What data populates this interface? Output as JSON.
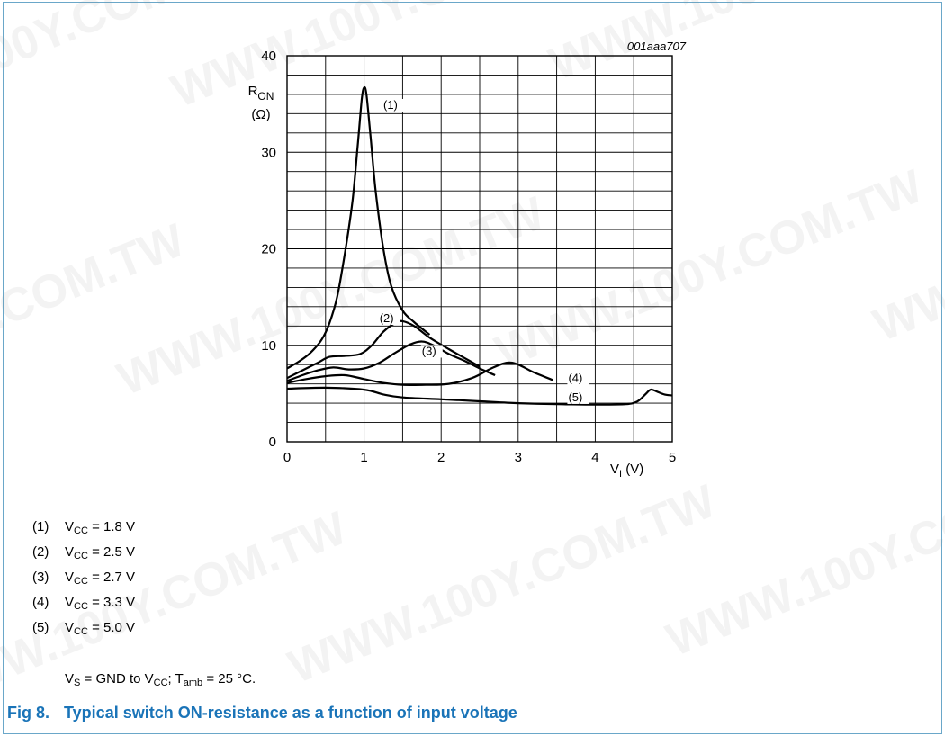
{
  "figure": {
    "number": "Fig 8.",
    "title": "Typical switch ON-resistance as a function of input voltage",
    "id": "001aaa707"
  },
  "watermark": "WWW.100Y.COM.TW",
  "colors": {
    "title": "#1a74b8",
    "frame": "#6aa7c9",
    "grid": "#000000",
    "curve": "#000000"
  },
  "conditions": {
    "parts": [
      "V",
      "S",
      " = GND to V",
      "CC",
      "; T",
      "amb",
      " = 25 °C."
    ]
  },
  "legend": [
    {
      "num": "(1)",
      "var": "V",
      "sub": "CC",
      "text": " = 1.8 V"
    },
    {
      "num": "(2)",
      "var": "V",
      "sub": "CC",
      "text": " = 2.5 V"
    },
    {
      "num": "(3)",
      "var": "V",
      "sub": "CC",
      "text": " = 2.7 V"
    },
    {
      "num": "(4)",
      "var": "V",
      "sub": "CC",
      "text": " = 3.3 V"
    },
    {
      "num": "(5)",
      "var": "V",
      "sub": "CC",
      "text": " = 5.0 V"
    }
  ],
  "chart_data": {
    "type": "line",
    "xlabel": {
      "var": "V",
      "sub": "I",
      "unit": " (V)"
    },
    "ylabel": {
      "var": "R",
      "sub": "ON",
      "unit": "(Ω)"
    },
    "xlim": [
      0,
      5
    ],
    "ylim": [
      0,
      40
    ],
    "x_ticks": [
      "0",
      "1",
      "2",
      "3",
      "4",
      "5"
    ],
    "y_ticks": [
      "0",
      "10",
      "20",
      "30",
      "40"
    ],
    "x_minor_step": 0.5,
    "y_minor_step": 2,
    "grid": true,
    "series": [
      {
        "name": "(1)",
        "label_at": [
          1.25,
          34.5
        ],
        "points": [
          [
            0,
            7.6
          ],
          [
            0.15,
            8.3
          ],
          [
            0.3,
            9.2
          ],
          [
            0.45,
            10.6
          ],
          [
            0.55,
            12.3
          ],
          [
            0.65,
            15
          ],
          [
            0.75,
            19.5
          ],
          [
            0.85,
            25
          ],
          [
            0.92,
            31
          ],
          [
            0.97,
            35.5
          ],
          [
            1.0,
            36.7
          ],
          [
            1.03,
            36
          ],
          [
            1.08,
            32
          ],
          [
            1.15,
            26
          ],
          [
            1.25,
            20
          ],
          [
            1.35,
            16.2
          ],
          [
            1.5,
            13.6
          ],
          [
            1.65,
            12.4
          ],
          [
            1.85,
            11.1
          ]
        ]
      },
      {
        "name": "(2)",
        "label_at": [
          1.2,
          12.4
        ],
        "points": [
          [
            0,
            6.6
          ],
          [
            0.2,
            7.4
          ],
          [
            0.4,
            8.2
          ],
          [
            0.55,
            8.8
          ],
          [
            0.75,
            8.9
          ],
          [
            0.95,
            9.1
          ],
          [
            1.1,
            10
          ],
          [
            1.25,
            11.4
          ],
          [
            1.4,
            12.3
          ],
          [
            1.5,
            12.5
          ],
          [
            1.65,
            12
          ],
          [
            1.85,
            10.8
          ],
          [
            2.1,
            9.6
          ],
          [
            2.3,
            8.7
          ],
          [
            2.5,
            7.8
          ]
        ]
      },
      {
        "name": "(3)",
        "label_at": [
          1.75,
          9.0
        ],
        "points": [
          [
            0,
            6.3
          ],
          [
            0.2,
            6.9
          ],
          [
            0.4,
            7.4
          ],
          [
            0.6,
            7.7
          ],
          [
            0.8,
            7.5
          ],
          [
            1.0,
            7.6
          ],
          [
            1.2,
            8.2
          ],
          [
            1.4,
            9.2
          ],
          [
            1.6,
            10.1
          ],
          [
            1.75,
            10.4
          ],
          [
            1.9,
            10
          ],
          [
            2.1,
            9.1
          ],
          [
            2.3,
            8.4
          ],
          [
            2.5,
            7.6
          ],
          [
            2.7,
            6.9
          ]
        ]
      },
      {
        "name": "(4)",
        "label_at": [
          3.65,
          6.2
        ],
        "points": [
          [
            0,
            6.1
          ],
          [
            0.25,
            6.5
          ],
          [
            0.5,
            6.8
          ],
          [
            0.75,
            6.9
          ],
          [
            1.0,
            6.5
          ],
          [
            1.25,
            6.1
          ],
          [
            1.5,
            5.9
          ],
          [
            1.8,
            5.9
          ],
          [
            2.1,
            6.0
          ],
          [
            2.4,
            6.6
          ],
          [
            2.65,
            7.6
          ],
          [
            2.85,
            8.2
          ],
          [
            3.0,
            8.0
          ],
          [
            3.2,
            7.2
          ],
          [
            3.45,
            6.4
          ]
        ]
      },
      {
        "name": "(5)",
        "label_at": [
          3.65,
          4.2
        ],
        "points": [
          [
            0,
            5.5
          ],
          [
            0.5,
            5.6
          ],
          [
            1.0,
            5.4
          ],
          [
            1.25,
            4.9
          ],
          [
            1.5,
            4.6
          ],
          [
            2.0,
            4.4
          ],
          [
            2.5,
            4.2
          ],
          [
            3.0,
            4.0
          ],
          [
            3.5,
            3.9
          ],
          [
            4.0,
            3.85
          ],
          [
            4.4,
            3.9
          ],
          [
            4.55,
            4.2
          ],
          [
            4.65,
            4.9
          ],
          [
            4.72,
            5.4
          ],
          [
            4.8,
            5.2
          ],
          [
            4.9,
            4.9
          ],
          [
            5.0,
            4.8
          ]
        ]
      }
    ]
  }
}
